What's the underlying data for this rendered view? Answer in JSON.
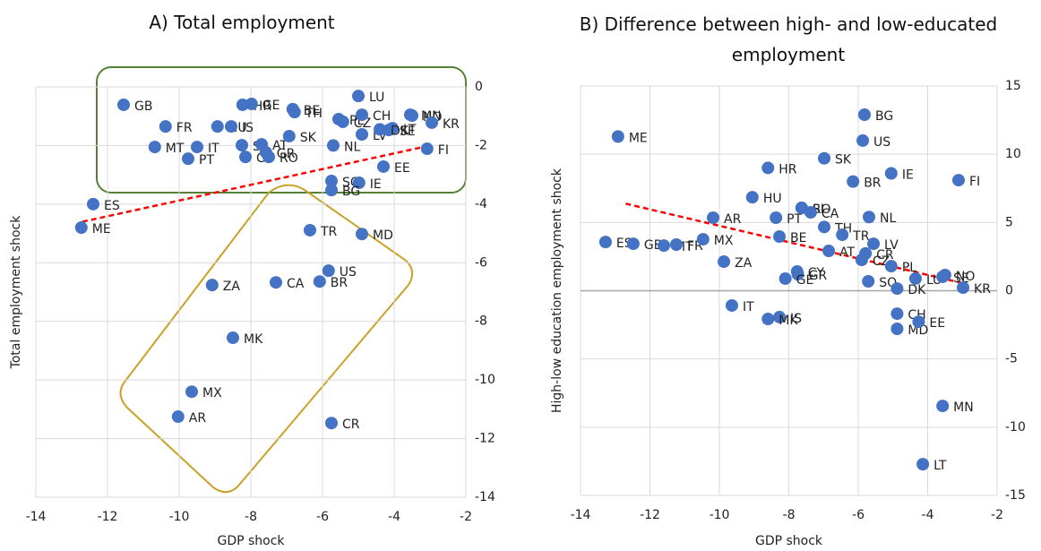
{
  "chart_data": [
    {
      "type": "scatter",
      "title": "A) Total employment",
      "x_label": "GDP shock",
      "y_label": "Total employment shock",
      "xlim": [
        -14,
        -2
      ],
      "xticks": [
        -14,
        -12,
        -10,
        -8,
        -6,
        -4,
        -2
      ],
      "ylim": [
        -14,
        0
      ],
      "yticks": [
        -14,
        -12,
        -10,
        -8,
        -6,
        -4,
        -2,
        0
      ],
      "grid": true,
      "color": "#4472c4",
      "labels": [
        "GB",
        "FR",
        "HU",
        "HR",
        "GE",
        "BE",
        "MT",
        "IT",
        "PT",
        "IS",
        "CY",
        "SI",
        "AT",
        "GR",
        "RO",
        "SK",
        "TH",
        "PL",
        "LU",
        "CZ",
        "LV",
        "CH",
        "MN",
        "NO",
        "KR",
        "LT",
        "SE",
        "DK",
        "NL",
        "SQ",
        "FI",
        "EE",
        "IE",
        "BG",
        "ES",
        "ME",
        "TR",
        "MD",
        "US",
        "BR",
        "CA",
        "ZA",
        "MK",
        "MX",
        "AR",
        "CR"
      ],
      "x": [
        -11.55,
        -10.38,
        -8.93,
        -8.23,
        -7.98,
        -6.83,
        -10.68,
        -9.5,
        -9.75,
        -8.55,
        -8.15,
        -8.25,
        -7.7,
        -7.58,
        -7.5,
        -6.93,
        -6.78,
        -5.55,
        -5.0,
        -5.43,
        -4.9,
        -4.9,
        -3.55,
        -3.5,
        -2.95,
        -4.05,
        -4.15,
        -4.4,
        -5.7,
        -5.75,
        -3.08,
        -4.3,
        -4.98,
        -5.75,
        -12.4,
        -12.73,
        -6.35,
        -4.9,
        -5.83,
        -6.08,
        -7.3,
        -9.08,
        -8.5,
        -9.65,
        -10.03,
        -5.75
      ],
      "y": [
        -0.61,
        -1.35,
        -1.35,
        -0.61,
        -0.58,
        -0.76,
        -2.05,
        -2.05,
        -2.45,
        -1.35,
        -2.39,
        -1.99,
        -1.96,
        -2.23,
        -2.39,
        -1.68,
        -0.86,
        -1.1,
        -0.31,
        -1.19,
        -1.62,
        -0.95,
        -0.95,
        -0.98,
        -1.22,
        -1.41,
        -1.47,
        -1.45,
        -2.0,
        -3.21,
        -2.11,
        -2.72,
        -3.27,
        -3.52,
        -4.0,
        -4.8,
        -4.89,
        -5.02,
        -6.27,
        -6.64,
        -6.67,
        -6.76,
        -8.56,
        -10.4,
        -11.25,
        -11.47
      ],
      "trendline": {
        "color": "#ff0000",
        "x": [
          -12.7,
          -3.0
        ],
        "y": [
          -4.6,
          -2.0
        ]
      }
    },
    {
      "type": "scatter",
      "title": "B) Difference between high- and low-educated employment",
      "x_label": "GDP shock",
      "y_label": "High-low education employment shock",
      "xlim": [
        -14,
        -2
      ],
      "xticks": [
        -14,
        -12,
        -10,
        -8,
        -6,
        -4,
        -2
      ],
      "ylim": [
        -15,
        15
      ],
      "yticks": [
        -15,
        -10,
        -5,
        0,
        5,
        10,
        15
      ],
      "grid": true,
      "color": "#4472c4",
      "labels": [
        "ME",
        "BG",
        "US",
        "SK",
        "HR",
        "IE",
        "BR",
        "FI",
        "HU",
        "RO",
        "AR",
        "PT",
        "SI",
        "CA",
        "NL",
        "TH",
        "TR",
        "LV",
        "CR",
        "ES",
        "GB",
        "MT",
        "FR",
        "MX",
        "BE",
        "ZA",
        "CY",
        "AT",
        "CZ",
        "PL",
        "LU",
        "SE",
        "NO",
        "KR",
        "GR",
        "GE",
        "SQ",
        "DK",
        "CH",
        "MD",
        "EE",
        "IT",
        "IS",
        "MK",
        "MN",
        "LT"
      ],
      "x": [
        -12.92,
        -5.82,
        -5.87,
        -6.98,
        -8.6,
        -5.05,
        -6.15,
        -3.11,
        -9.05,
        -7.63,
        -10.18,
        -8.37,
        -7.63,
        -7.37,
        -5.69,
        -6.98,
        -6.46,
        -5.56,
        -5.79,
        -13.28,
        -12.48,
        -11.6,
        -11.24,
        -10.47,
        -8.27,
        -9.87,
        -7.76,
        -6.85,
        -5.9,
        -5.05,
        -4.35,
        -3.57,
        -3.5,
        -2.98,
        -7.74,
        -8.1,
        -5.71,
        -4.88,
        -4.88,
        -4.88,
        -4.26,
        -9.64,
        -8.27,
        -8.6,
        -3.57,
        -4.14
      ],
      "y": [
        11.3,
        12.9,
        11.0,
        9.7,
        9.0,
        8.6,
        8.0,
        8.1,
        6.85,
        6.07,
        5.35,
        5.35,
        6.07,
        5.74,
        5.4,
        4.67,
        4.1,
        3.44,
        2.73,
        3.57,
        3.44,
        3.31,
        3.38,
        3.77,
        3.97,
        2.13,
        1.41,
        2.92,
        2.26,
        1.8,
        0.89,
        1.02,
        1.15,
        0.23,
        1.21,
        0.89,
        0.69,
        0.16,
        -1.68,
        -2.79,
        -2.27,
        -1.08,
        -1.93,
        -2.07,
        -8.44,
        -12.71
      ],
      "trendline": {
        "color": "#ff0000",
        "x": [
          -12.7,
          -3.0
        ],
        "y": [
          6.38,
          0.56
        ]
      }
    }
  ]
}
